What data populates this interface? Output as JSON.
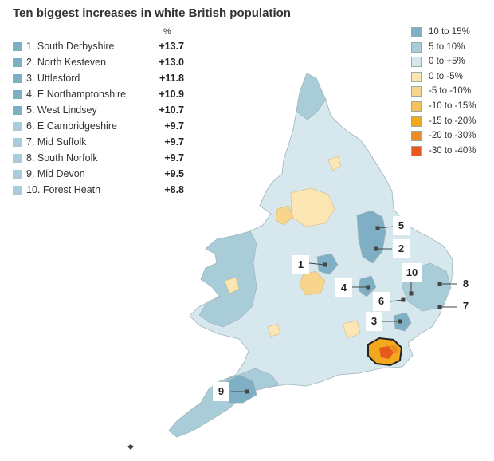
{
  "title": "Ten biggest increases in white British population",
  "ranking_unit": "%",
  "ranking": [
    {
      "name": "1. South Derbyshire",
      "value": "+13.7",
      "color": "#7eafc4"
    },
    {
      "name": "2. North Kesteven",
      "value": "+13.0",
      "color": "#7eafc4"
    },
    {
      "name": "3. Uttlesford",
      "value": "+11.8",
      "color": "#7eafc4"
    },
    {
      "name": "4. E Northamptonshire",
      "value": "+10.9",
      "color": "#7eafc4"
    },
    {
      "name": "5. West Lindsey",
      "value": "+10.7",
      "color": "#7eafc4"
    },
    {
      "name": "6. E Cambridgeshire",
      "value": "+9.7",
      "color": "#a8cdd9"
    },
    {
      "name": "7. Mid Suffolk",
      "value": "+9.7",
      "color": "#a8cdd9"
    },
    {
      "name": "8. South Norfolk",
      "value": "+9.7",
      "color": "#a8cdd9"
    },
    {
      "name": "9. Mid Devon",
      "value": "+9.5",
      "color": "#a8cdd9"
    },
    {
      "name": "10. Forest Heath",
      "value": "+8.8",
      "color": "#a8cdd9"
    }
  ],
  "legend": [
    {
      "label": "10 to 15%",
      "color": "#7eafc4"
    },
    {
      "label": "5 to 10%",
      "color": "#a8cdd9"
    },
    {
      "label": "0 to +5%",
      "color": "#d6e8ed"
    },
    {
      "label": "0 to -5%",
      "color": "#fbe6b4"
    },
    {
      "label": "-5 to -10%",
      "color": "#f8d58c"
    },
    {
      "label": "-10 to -15%",
      "color": "#f6c35a"
    },
    {
      "label": "-15 to -20%",
      "color": "#f2a91e"
    },
    {
      "label": "-20 to -30%",
      "color": "#ee8a24"
    },
    {
      "label": "-30 to -40%",
      "color": "#e65a1c"
    }
  ],
  "callouts": [
    {
      "label": "1",
      "rank": 1
    },
    {
      "label": "2",
      "rank": 2
    },
    {
      "label": "3",
      "rank": 3
    },
    {
      "label": "4",
      "rank": 4
    },
    {
      "label": "5",
      "rank": 5
    },
    {
      "label": "6",
      "rank": 6
    },
    {
      "label": "7",
      "rank": 7
    },
    {
      "label": "8",
      "rank": 8
    },
    {
      "label": "9",
      "rank": 9
    },
    {
      "label": "10",
      "rank": 10
    }
  ]
}
